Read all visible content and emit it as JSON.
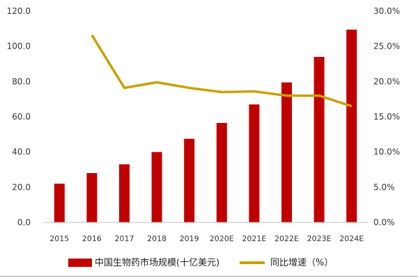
{
  "chart_data": {
    "type": "bar",
    "categories": [
      "2015",
      "2016",
      "2017",
      "2018",
      "2019",
      "2020E",
      "2021E",
      "2022E",
      "2023E",
      "2024E"
    ],
    "series": [
      {
        "name": "中国生物药市场规模(十亿美元)",
        "type": "bar",
        "axis": "left",
        "color": "#C00000",
        "values": [
          22.0,
          28.0,
          33.0,
          40.0,
          47.5,
          56.5,
          67.0,
          79.5,
          94.0,
          109.5
        ]
      },
      {
        "name": "同比增速（%）",
        "type": "line",
        "axis": "right",
        "color": "#C9A000",
        "values": [
          null,
          26.6,
          19.1,
          19.9,
          19.1,
          18.5,
          18.6,
          18.0,
          18.0,
          16.5
        ]
      }
    ],
    "y_left": {
      "ylim": [
        0,
        120
      ],
      "ticks": [
        0,
        20,
        40,
        60,
        80,
        100,
        120
      ],
      "tick_labels": [
        "0.0",
        "20.0",
        "40.0",
        "60.0",
        "80.0",
        "100.0",
        "120.0"
      ]
    },
    "y_right": {
      "ylim": [
        0,
        30
      ],
      "ticks": [
        0,
        5,
        10,
        15,
        20,
        25,
        30
      ],
      "tick_labels": [
        "0.0%",
        "5.0%",
        "10.0%",
        "15.0%",
        "20.0%",
        "25.0%",
        "30.0%"
      ]
    },
    "grid": false,
    "legend_position": "bottom",
    "title": "",
    "xlabel": "",
    "ylabel": ""
  }
}
